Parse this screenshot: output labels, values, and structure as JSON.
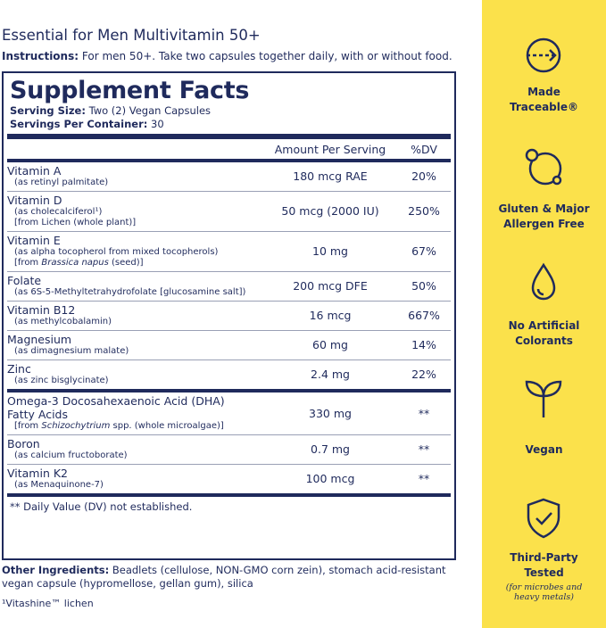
{
  "title": "Essential for Men Multivitamin 50+",
  "instructions": {
    "label": "Instructions:",
    "text": "For men 50+. Take two capsules together daily, with or without food."
  },
  "facts": {
    "heading": "Supplement Facts",
    "serving_size": {
      "label": "Serving Size:",
      "value": "Two (2) Vegan Capsules"
    },
    "servings": {
      "label": "Servings Per Container:",
      "value": "30"
    },
    "columns": [
      "Amount Per Serving",
      "%DV"
    ],
    "groups": [
      [
        {
          "name": "Vitamin A",
          "notes": [
            "(as retinyl palmitate)"
          ],
          "amount": "180 mcg RAE",
          "dv": "20%"
        },
        {
          "name": "Vitamin D",
          "notes": [
            "(as cholecalciferol¹)",
            "[from Lichen (whole plant)]"
          ],
          "amount": "50 mcg (2000 IU)",
          "dv": "250%"
        },
        {
          "name": "Vitamin E",
          "notes": [
            "(as alpha tocopherol from mixed tocopherols)",
            {
              "pre": "[from ",
              "italic": "Brassica napus",
              "post": " (seed)]"
            }
          ],
          "amount": "10 mg",
          "dv": "67%"
        },
        {
          "name": "Folate",
          "notes": [
            "(as 6S-5-Methyltetrahydrofolate [glucosamine salt])"
          ],
          "amount": "200 mcg DFE",
          "dv": "50%"
        },
        {
          "name": "Vitamin B12",
          "notes": [
            "(as methylcobalamin)"
          ],
          "amount": "16 mcg",
          "dv": "667%"
        },
        {
          "name": "Magnesium",
          "notes": [
            "(as dimagnesium malate)"
          ],
          "amount": "60 mg",
          "dv": "14%"
        },
        {
          "name": "Zinc",
          "notes": [
            "(as zinc bisglycinate)"
          ],
          "amount": "2.4 mg",
          "dv": "22%"
        }
      ],
      [
        {
          "name": "Omega-3 Docosahexaenoic Acid (DHA) Fatty Acids",
          "notes": [
            {
              "pre": "[from ",
              "italic": "Schizochytrium",
              "post": " spp. (whole microalgae)]"
            }
          ],
          "amount": "330 mg",
          "dv": "**"
        },
        {
          "name": "Boron",
          "notes": [
            "(as calcium fructoborate)"
          ],
          "amount": "0.7 mg",
          "dv": "**"
        },
        {
          "name": "Vitamin K2",
          "notes": [
            "(as Menaquinone-7)"
          ],
          "amount": "100 mcg",
          "dv": "**"
        }
      ]
    ],
    "footnote": "** Daily Value (DV) not established."
  },
  "other_ingredients": {
    "label": "Other Ingredients:",
    "text": "Beadlets (cellulose, NON-GMO corn zein), stomach acid-resistant vegan capsule (hypromellose, gellan gum), silica"
  },
  "source_note": "¹Vitashine™ lichen",
  "badges": [
    {
      "label": "Made Traceable®"
    },
    {
      "label": "Gluten & Major Allergen Free"
    },
    {
      "label": "No Artificial Colorants"
    },
    {
      "label": "Vegan"
    },
    {
      "label": "Third-Party Tested",
      "note": "(for microbes and heavy metals)"
    }
  ]
}
